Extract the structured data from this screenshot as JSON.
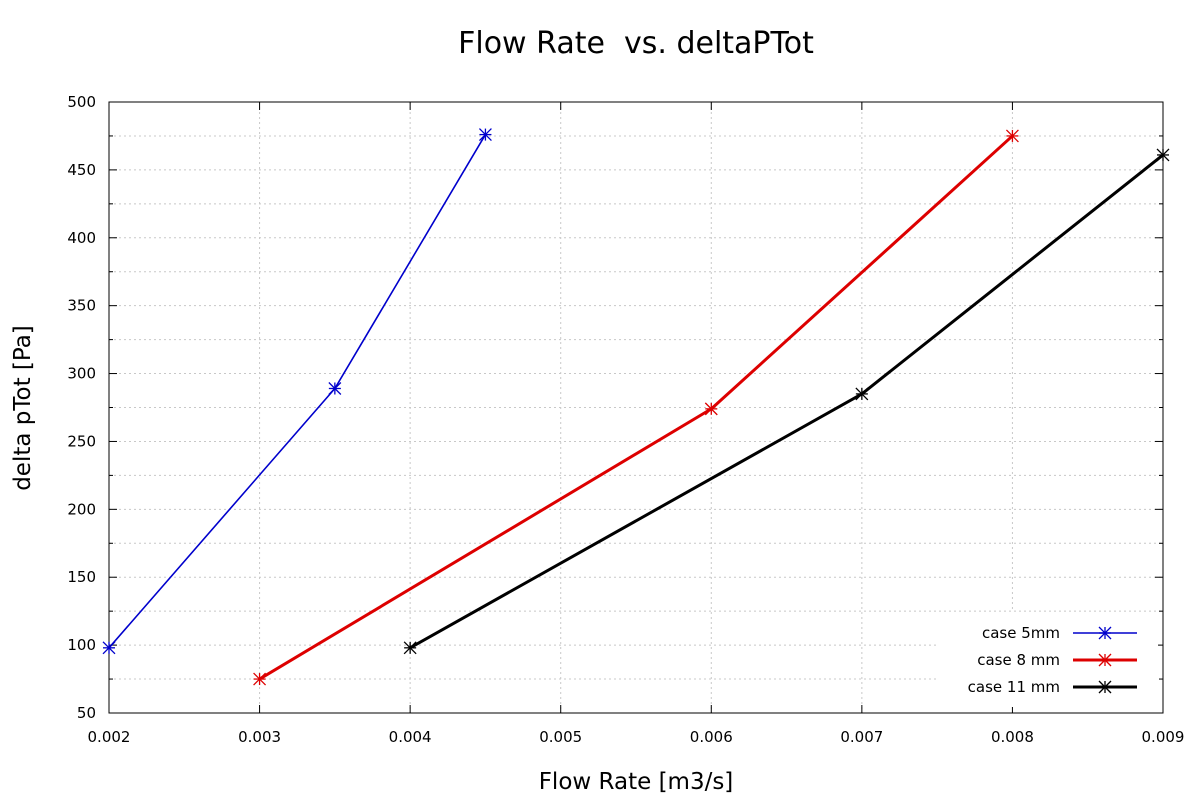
{
  "chart_data": {
    "type": "line",
    "title": "Flow Rate  vs. deltaPTot",
    "xlabel": "Flow Rate [m3/s]",
    "ylabel": "delta pTot [Pa]",
    "xlim": [
      0.002,
      0.009
    ],
    "ylim": [
      50,
      500
    ],
    "x_ticks": [
      "0.002",
      "0.003",
      "0.004",
      "0.005",
      "0.006",
      "0.007",
      "0.008",
      "0.009"
    ],
    "y_ticks": [
      "50",
      "100",
      "150",
      "200",
      "250",
      "300",
      "350",
      "400",
      "450",
      "500"
    ],
    "grid": true,
    "legend_position": "bottom-right",
    "marker": "asterisk",
    "series": [
      {
        "name": "case 5mm",
        "color": "#0000cc",
        "x": [
          0.002,
          0.0035,
          0.0045
        ],
        "y": [
          98,
          289,
          476
        ]
      },
      {
        "name": "case 8 mm",
        "color": "#dd0000",
        "x": [
          0.003,
          0.006,
          0.008
        ],
        "y": [
          75,
          274,
          475
        ]
      },
      {
        "name": "case 11 mm",
        "color": "#000000",
        "x": [
          0.004,
          0.007,
          0.009
        ],
        "y": [
          98,
          285,
          461
        ]
      }
    ]
  }
}
